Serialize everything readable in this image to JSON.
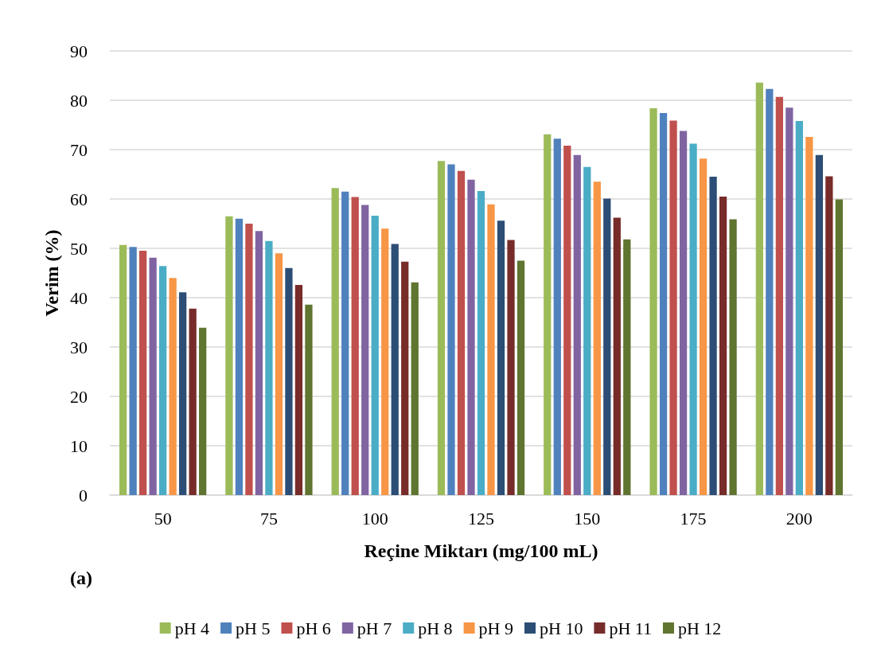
{
  "chart_data": {
    "type": "bar",
    "xlabel": "Reçine Miktarı (mg/100 mL)",
    "ylabel": "Verim (%)",
    "annotations": [
      "(a)"
    ],
    "categories": [
      "50",
      "75",
      "100",
      "125",
      "150",
      "175",
      "200"
    ],
    "ylim": [
      0,
      90
    ],
    "yticks": [
      0,
      10,
      20,
      30,
      40,
      50,
      60,
      70,
      80,
      90
    ],
    "grid": "y",
    "legend": "bottom",
    "series": [
      {
        "name": "pH 4",
        "color": "#9bbb59",
        "values": [
          50.7,
          56.5,
          62.2,
          67.7,
          73.1,
          78.4,
          83.6
        ]
      },
      {
        "name": "pH 5",
        "color": "#4f81bd",
        "values": [
          50.3,
          56.0,
          61.5,
          67.0,
          72.2,
          77.4,
          82.3
        ]
      },
      {
        "name": "pH 6",
        "color": "#c0504d",
        "values": [
          49.5,
          55.0,
          60.4,
          65.7,
          70.8,
          75.9,
          80.7
        ]
      },
      {
        "name": "pH 7",
        "color": "#8064a2",
        "values": [
          48.1,
          53.5,
          58.8,
          63.9,
          68.9,
          73.8,
          78.5
        ]
      },
      {
        "name": "pH 8",
        "color": "#4bacc6",
        "values": [
          46.4,
          51.5,
          56.6,
          61.6,
          66.5,
          71.2,
          75.8
        ]
      },
      {
        "name": "pH 9",
        "color": "#f79646",
        "values": [
          44.0,
          49.0,
          54.0,
          58.9,
          63.5,
          68.2,
          72.6
        ]
      },
      {
        "name": "pH 10",
        "color": "#2c4d75",
        "values": [
          41.1,
          46.0,
          50.9,
          55.6,
          60.1,
          64.5,
          68.9
        ]
      },
      {
        "name": "pH 11",
        "color": "#772c2a",
        "values": [
          37.8,
          42.6,
          47.3,
          51.7,
          56.2,
          60.5,
          64.6
        ]
      },
      {
        "name": "pH 12",
        "color": "#5f7530",
        "values": [
          33.9,
          38.6,
          43.1,
          47.5,
          51.8,
          55.9,
          59.9
        ]
      }
    ]
  }
}
